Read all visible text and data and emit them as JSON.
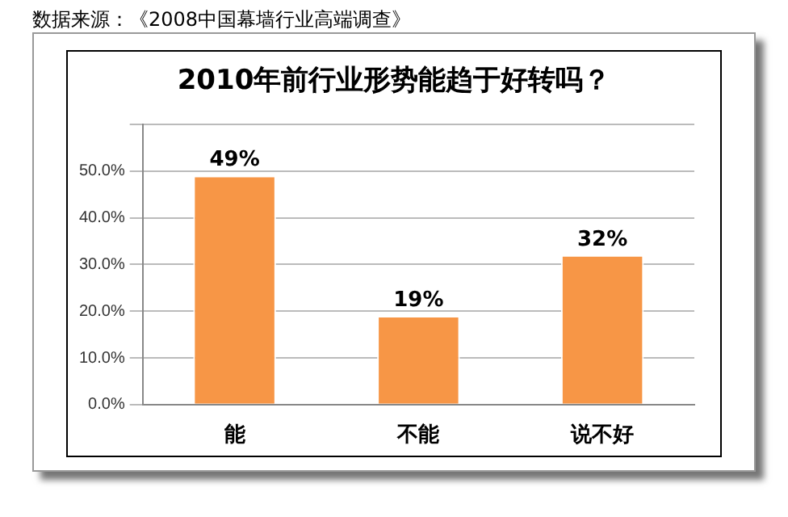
{
  "chart_data": {
    "type": "bar",
    "title": "2010年前行业形势能趋于好转吗？",
    "annotations": [
      "数据来源：《2008中国幕墙行业高端调查》"
    ],
    "categories": [
      "能",
      "不能",
      "说不好"
    ],
    "values": [
      49,
      19,
      32
    ],
    "value_labels": [
      "49%",
      "19%",
      "32%"
    ],
    "color": "#f79646",
    "ylim": [
      0,
      60
    ],
    "yticks": [
      {
        "value": 0,
        "label": "0.0%"
      },
      {
        "value": 10,
        "label": "10.0%"
      },
      {
        "value": 20,
        "label": "20.0%"
      },
      {
        "value": 30,
        "label": "30.0%"
      },
      {
        "value": 40,
        "label": "40.0%"
      },
      {
        "value": 50,
        "label": "50.0%"
      },
      {
        "value": 60,
        "label": null
      }
    ],
    "grid": "y"
  }
}
